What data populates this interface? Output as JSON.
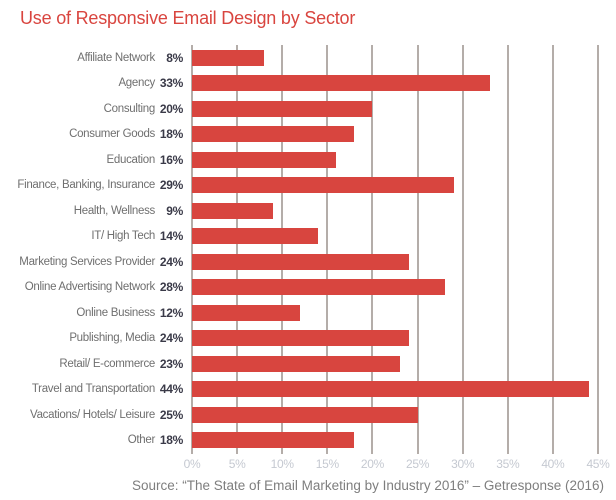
{
  "title": "Use of Responsive Email Design by Sector",
  "source": "Source: “The State of Email Marketing by Industry 2016” – Getresponse (2016)",
  "colors": {
    "background": "#ffffff",
    "title": "#d9453f",
    "bar": "#d8453f",
    "grid": "#b4ada9",
    "label": "#6f6f6f",
    "value": "#3a3a48",
    "tick": "#c5c9d1",
    "source": "#7e7e7e"
  },
  "chart_data": {
    "type": "bar",
    "orientation": "horizontal",
    "title": "Use of Responsive Email Design by Sector",
    "xlabel": "",
    "ylabel": "",
    "xlim": [
      0,
      45
    ],
    "grid": "vertical",
    "legend": "none",
    "categories": [
      "Affiliate Network",
      "Agency",
      "Consulting",
      "Consumer Goods",
      "Education",
      "Finance, Banking, Insurance",
      "Health, Wellness",
      "IT/ High Tech",
      "Marketing Services Provider",
      "Online Advertising Network",
      "Online Business",
      "Publishing, Media",
      "Retail/ E-commerce",
      "Travel and Transportation",
      "Vacations/ Hotels/ Leisure",
      "Other"
    ],
    "values": [
      8,
      33,
      20,
      18,
      16,
      29,
      9,
      14,
      24,
      28,
      12,
      24,
      23,
      44,
      25,
      18
    ],
    "value_labels": [
      "8%",
      "33%",
      "20%",
      "18%",
      "16%",
      "29%",
      "9%",
      "14%",
      "24%",
      "28%",
      "12%",
      "24%",
      "23%",
      "44%",
      "25%",
      "18%"
    ],
    "x_ticks": [
      "0%",
      "5%",
      "10%",
      "15%",
      "20%",
      "25%",
      "30%",
      "35%",
      "40%",
      "45%"
    ]
  }
}
